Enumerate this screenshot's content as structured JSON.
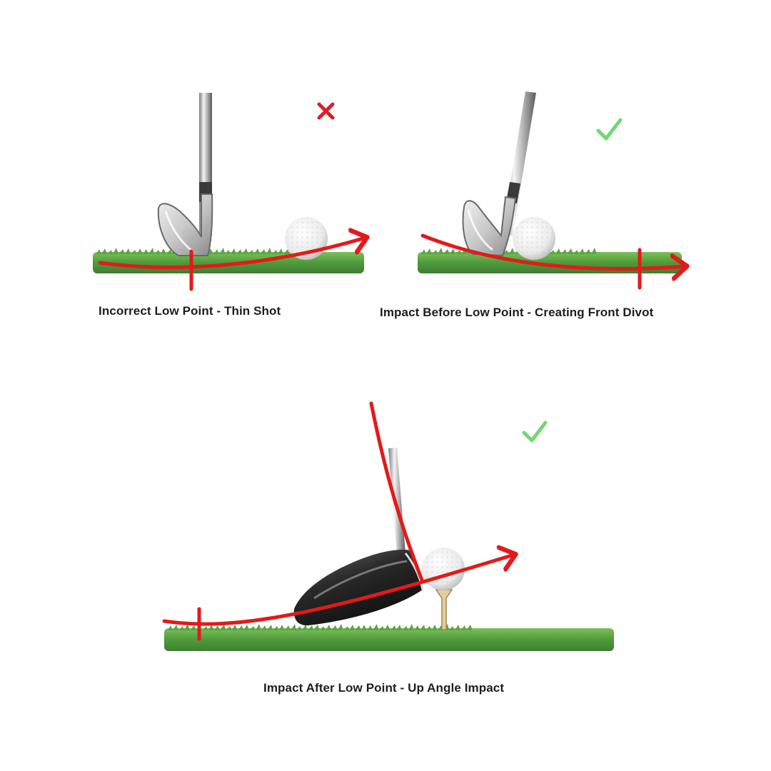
{
  "panels": [
    {
      "caption": "Incorrect Low Point - Thin Shot",
      "verdict": "incorrect",
      "mark_icon": "cross-icon"
    },
    {
      "caption": "Impact Before Low Point - Creating Front Divot",
      "verdict": "correct",
      "mark_icon": "check-icon"
    },
    {
      "caption": "Impact After Low Point - Up Angle Impact",
      "verdict": "correct",
      "mark_icon": "check-icon"
    }
  ],
  "colors": {
    "swing_path": "#e31a1a",
    "cross_mark": "#d81f2a",
    "check_mark": "#6fd873",
    "grass": "#4f9a3c",
    "grass_light": "#7cc05a",
    "caption_text": "#1e1e1e"
  }
}
